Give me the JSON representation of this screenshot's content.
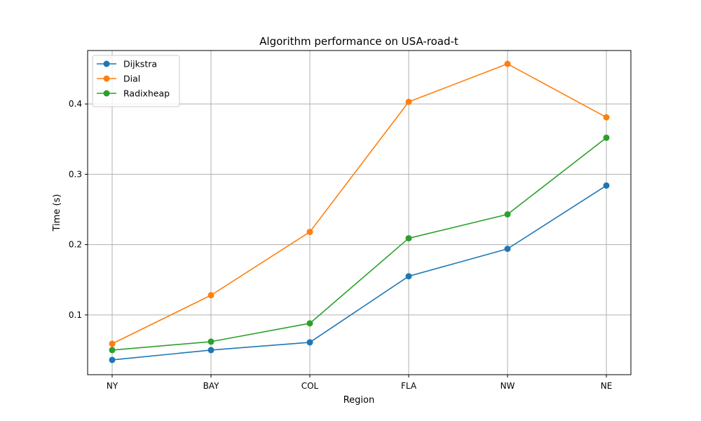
{
  "chart_data": {
    "type": "line",
    "title": "Algorithm performance on USA-road-t",
    "xlabel": "Region",
    "ylabel": "Time (s)",
    "categories": [
      "NY",
      "BAY",
      "COL",
      "FLA",
      "NW",
      "NE"
    ],
    "ylim": [
      0.015,
      0.476
    ],
    "yticks": [
      0.1,
      0.2,
      0.3,
      0.4
    ],
    "ytick_labels": [
      "0.1",
      "0.2",
      "0.3",
      "0.4"
    ],
    "grid": true,
    "legend_position": "top-left",
    "series": [
      {
        "name": "Dijkstra",
        "color": "#1f77b4",
        "values": [
          0.036,
          0.05,
          0.061,
          0.155,
          0.194,
          0.284
        ]
      },
      {
        "name": "Dial",
        "color": "#ff7f0e",
        "values": [
          0.059,
          0.128,
          0.218,
          0.403,
          0.457,
          0.381
        ]
      },
      {
        "name": "Radixheap",
        "color": "#2ca02c",
        "values": [
          0.05,
          0.062,
          0.088,
          0.209,
          0.243,
          0.352
        ]
      }
    ]
  }
}
